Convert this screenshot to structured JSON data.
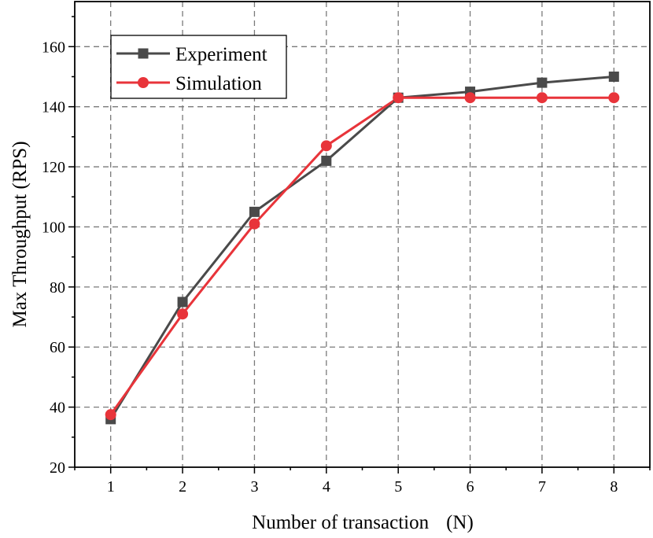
{
  "chart_data": {
    "type": "line",
    "xlabel": "Number of transaction",
    "xlabel_var": "(N)",
    "ylabel": "Max Throughput (RPS)",
    "x": [
      1,
      2,
      3,
      4,
      5,
      6,
      7,
      8
    ],
    "xlim": [
      0.5,
      8.5
    ],
    "ylim": [
      20,
      175
    ],
    "yticks": [
      20,
      40,
      60,
      80,
      100,
      120,
      140,
      160
    ],
    "xtick_labels": [
      "1",
      "2",
      "3",
      "4",
      "5",
      "6",
      "7",
      "8"
    ],
    "ytick_labels": [
      "20",
      "40",
      "60",
      "80",
      "100",
      "120",
      "140",
      "160"
    ],
    "grid": true,
    "legend_position": "top-left",
    "series": [
      {
        "name": "Experiment",
        "color": "#4a4a4a",
        "marker": "square",
        "values": [
          36,
          75,
          105,
          122,
          143,
          145,
          148,
          150
        ]
      },
      {
        "name": "Simulation",
        "color": "#e8343a",
        "marker": "circle",
        "values": [
          37.5,
          71,
          101,
          127,
          143,
          143,
          143,
          143
        ]
      }
    ]
  }
}
